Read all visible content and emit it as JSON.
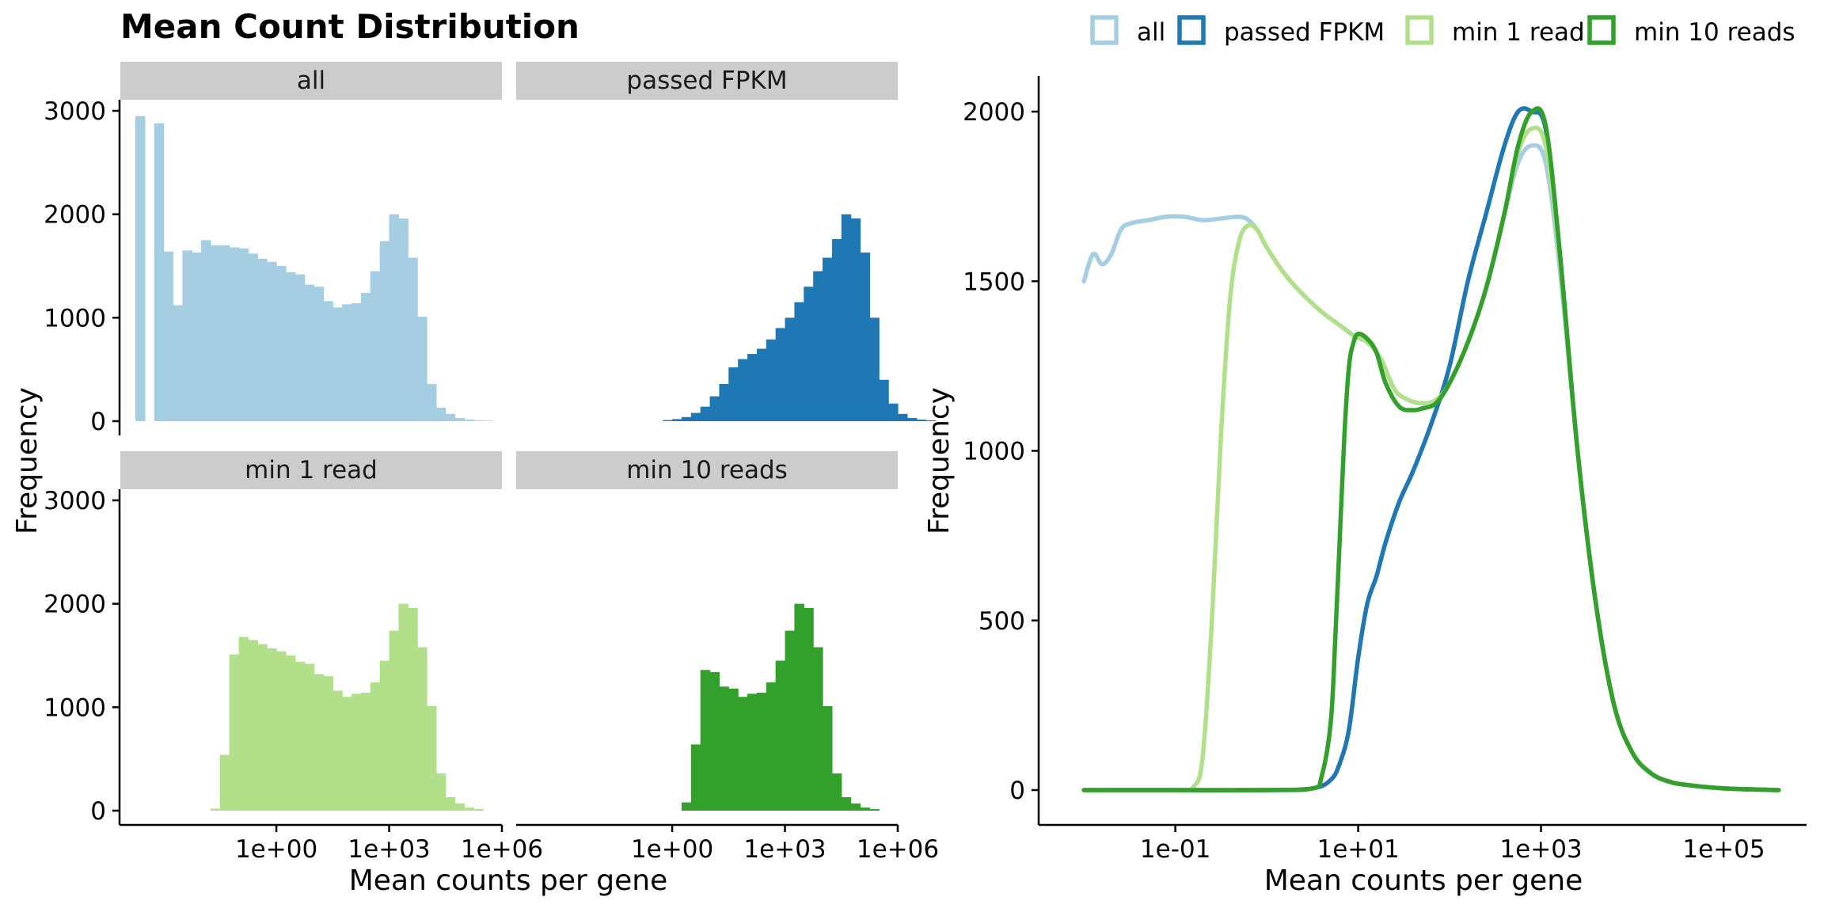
{
  "chart_data": [
    {
      "type": "bar",
      "kind": "faceted-histogram",
      "title": "Mean Count Distribution",
      "xlabel": "Mean counts per gene",
      "ylabel": "Frequency",
      "x_scale": "log10",
      "x_ticks": [
        "1e+00",
        "1e+03",
        "1e+06"
      ],
      "y_ticks": [
        "0",
        "1000",
        "2000",
        "3000"
      ],
      "ylim": [
        0,
        3000
      ],
      "bin_width_log10": 0.25,
      "facets": [
        {
          "label": "all",
          "color": "#a6cee3",
          "bins_start_log10": -3.75,
          "values": [
            2950,
            0,
            2880,
            1640,
            1120,
            1650,
            1630,
            1750,
            1700,
            1700,
            1680,
            1670,
            1620,
            1570,
            1540,
            1500,
            1440,
            1420,
            1320,
            1300,
            1160,
            1100,
            1130,
            1140,
            1240,
            1450,
            1740,
            2000,
            1960,
            1580,
            1010,
            360,
            130,
            70,
            30,
            15,
            8,
            5
          ]
        },
        {
          "label": "passed FPKM",
          "color": "#1f78b4",
          "bins_start_log10": -0.25,
          "values": [
            10,
            20,
            40,
            80,
            140,
            240,
            360,
            520,
            600,
            650,
            700,
            790,
            900,
            1000,
            1150,
            1300,
            1450,
            1580,
            1760,
            2000,
            1960,
            1630,
            1000,
            400,
            170,
            70,
            30,
            15,
            8
          ]
        },
        {
          "label": "min 1 read",
          "color": "#b2df8a",
          "bins_start_log10": -1.75,
          "values": [
            20,
            540,
            1510,
            1680,
            1650,
            1610,
            1570,
            1540,
            1500,
            1440,
            1420,
            1320,
            1300,
            1160,
            1100,
            1130,
            1140,
            1240,
            1450,
            1740,
            2000,
            1960,
            1580,
            1010,
            360,
            130,
            70,
            30,
            15
          ]
        },
        {
          "label": "min 10 reads",
          "color": "#33a02c",
          "bins_start_log10": 0.25,
          "values": [
            80,
            640,
            1360,
            1340,
            1200,
            1180,
            1100,
            1130,
            1140,
            1240,
            1450,
            1740,
            2000,
            1960,
            1580,
            1010,
            360,
            130,
            70,
            30,
            15
          ]
        }
      ]
    },
    {
      "type": "line",
      "kind": "density",
      "title": "",
      "xlabel": "Mean counts per gene",
      "ylabel": "Frequency",
      "x_scale": "log10",
      "x_ticks": [
        "1e-01",
        "1e+01",
        "1e+03",
        "1e+05"
      ],
      "y_ticks": [
        "0",
        "500",
        "1000",
        "1500",
        "2000"
      ],
      "ylim": [
        0,
        2000
      ],
      "legend_position": "top",
      "series": [
        {
          "name": "all",
          "color": "#a6cee3",
          "x_log10": [
            -2,
            -1.9,
            -1.8,
            -1.7,
            -1.6,
            -1.5,
            -1.3,
            -1.1,
            -0.9,
            -0.7,
            -0.5,
            -0.3,
            -0.2,
            -0.1,
            0,
            0.2,
            0.4,
            0.6,
            0.8,
            0.95,
            1.1,
            1.25,
            1.4,
            1.55,
            1.7,
            1.85,
            2.0,
            2.2,
            2.4,
            2.6,
            2.75,
            2.9,
            3.05,
            3.2,
            3.4,
            3.6,
            3.8,
            4.0,
            4.2,
            4.4,
            4.6,
            5.0,
            5.6
          ],
          "y": [
            1500,
            1580,
            1550,
            1580,
            1650,
            1670,
            1680,
            1690,
            1690,
            1680,
            1685,
            1690,
            1680,
            1650,
            1600,
            1520,
            1460,
            1410,
            1370,
            1340,
            1320,
            1270,
            1180,
            1150,
            1140,
            1150,
            1200,
            1320,
            1480,
            1700,
            1850,
            1900,
            1850,
            1550,
            1000,
            550,
            250,
            110,
            50,
            25,
            15,
            5,
            0
          ]
        },
        {
          "name": "passed FPKM",
          "color": "#1f78b4",
          "x_log10": [
            -2,
            -1.0,
            0.0,
            0.5,
            0.7,
            0.8,
            0.9,
            1.0,
            1.1,
            1.2,
            1.3,
            1.45,
            1.6,
            1.8,
            2.0,
            2.2,
            2.4,
            2.6,
            2.75,
            2.9,
            3.05,
            3.2,
            3.4,
            3.6,
            3.8,
            4.0,
            4.2,
            4.4,
            4.6,
            5.0,
            5.6
          ],
          "y": [
            0,
            0,
            0,
            5,
            30,
            80,
            180,
            390,
            550,
            630,
            730,
            850,
            940,
            1080,
            1250,
            1500,
            1700,
            1900,
            2000,
            2000,
            1950,
            1600,
            1000,
            550,
            250,
            110,
            50,
            25,
            15,
            5,
            0
          ]
        },
        {
          "name": "min 1 read",
          "color": "#b2df8a",
          "x_log10": [
            -2,
            -1.0,
            -0.8,
            -0.7,
            -0.6,
            -0.5,
            -0.4,
            -0.3,
            -0.2,
            -0.1,
            0.0,
            0.2,
            0.4,
            0.6,
            0.8,
            0.95,
            1.1,
            1.25,
            1.4,
            1.55,
            1.7,
            1.85,
            2.0,
            2.2,
            2.4,
            2.6,
            2.75,
            2.9,
            3.05,
            3.2,
            3.4,
            3.6,
            3.8,
            4.0,
            4.2,
            4.4,
            4.6,
            5.0,
            5.6
          ],
          "y": [
            0,
            0,
            10,
            100,
            500,
            1050,
            1450,
            1620,
            1665,
            1650,
            1600,
            1520,
            1460,
            1410,
            1370,
            1340,
            1320,
            1270,
            1180,
            1150,
            1140,
            1150,
            1200,
            1320,
            1480,
            1700,
            1880,
            1950,
            1900,
            1580,
            1000,
            550,
            250,
            110,
            50,
            25,
            15,
            5,
            0
          ]
        },
        {
          "name": "min 10 reads",
          "color": "#33a02c",
          "x_log10": [
            -2,
            -1.0,
            0.0,
            0.5,
            0.6,
            0.7,
            0.75,
            0.8,
            0.85,
            0.9,
            0.95,
            1.0,
            1.1,
            1.2,
            1.3,
            1.45,
            1.6,
            1.7,
            1.85,
            2.0,
            2.2,
            2.4,
            2.6,
            2.75,
            2.9,
            3.05,
            3.2,
            3.4,
            3.6,
            3.8,
            4.0,
            4.2,
            4.4,
            4.6,
            5.0,
            5.6
          ],
          "y": [
            0,
            0,
            0,
            5,
            40,
            200,
            450,
            750,
            1050,
            1250,
            1320,
            1345,
            1330,
            1290,
            1200,
            1130,
            1120,
            1125,
            1140,
            1200,
            1320,
            1480,
            1700,
            1900,
            2000,
            1960,
            1600,
            1000,
            550,
            250,
            110,
            50,
            25,
            15,
            5,
            0
          ]
        }
      ]
    }
  ]
}
